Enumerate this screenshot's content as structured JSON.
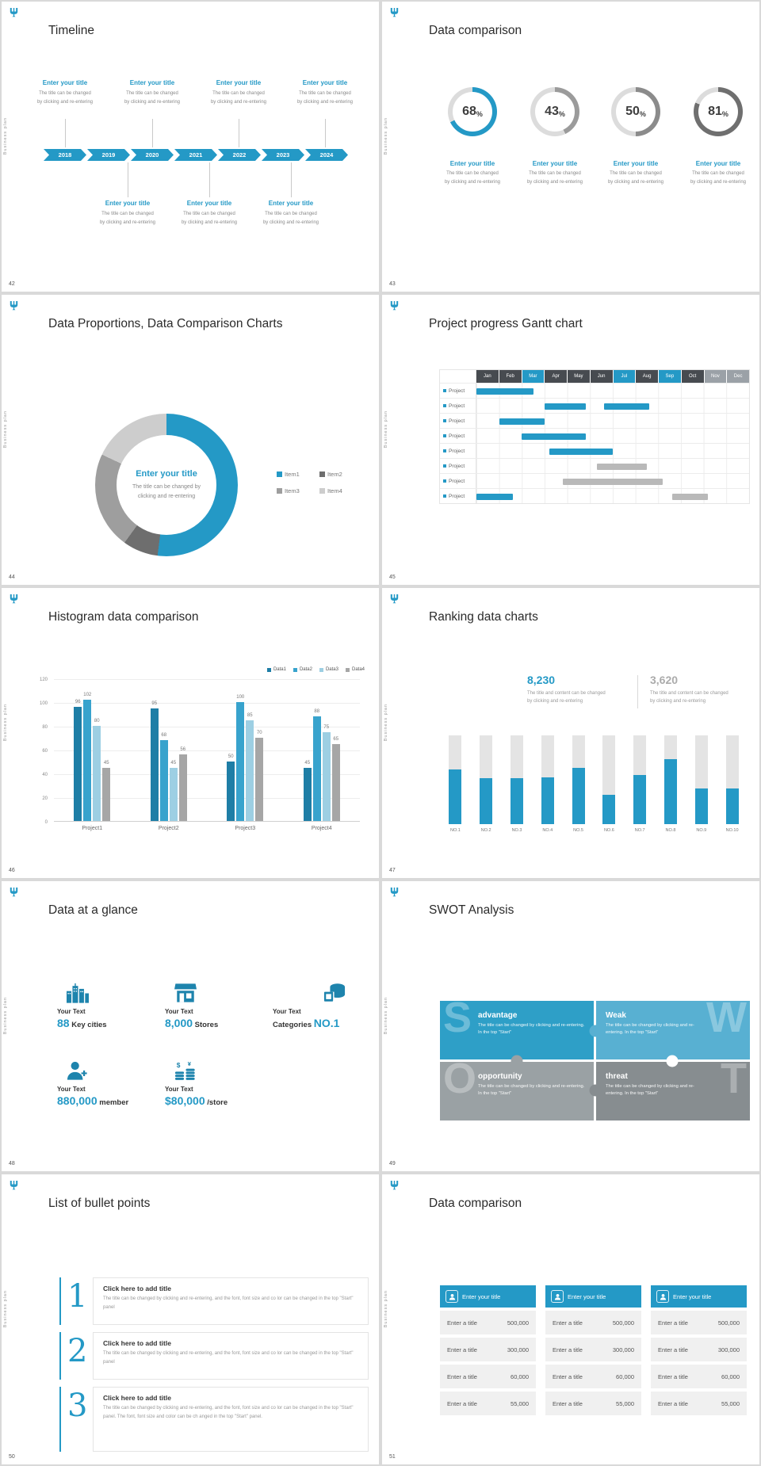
{
  "common": {
    "brand_vertical_text": "Business plan",
    "colors": {
      "primary": "#2499c6",
      "dark_text": "#2b2b2b",
      "gray_text": "#8a8a8a"
    }
  },
  "slides": [
    {
      "page": "42",
      "title": "Timeline",
      "years": [
        "2018",
        "2019",
        "2020",
        "2021",
        "2022",
        "2023",
        "2024"
      ],
      "top_entries": [
        {
          "title": "Enter your title",
          "desc1": "The title can be changed",
          "desc2": "by clicking and re-entering"
        },
        {
          "title": "Enter your title",
          "desc1": "The title can be changed",
          "desc2": "by clicking and re-entering"
        },
        {
          "title": "Enter your title",
          "desc1": "The title can be changed",
          "desc2": "by clicking and re-entering"
        },
        {
          "title": "Enter your title",
          "desc1": "The title can be changed",
          "desc2": "by clicking and re-entering"
        }
      ],
      "bottom_entries": [
        {
          "title": "Enter your title",
          "desc1": "The title can be changed",
          "desc2": "by clicking and re-entering"
        },
        {
          "title": "Enter your title",
          "desc1": "The title can be changed",
          "desc2": "by clicking and re-entering"
        },
        {
          "title": "Enter your title",
          "desc1": "The title can be changed",
          "desc2": "by clicking and re-entering"
        }
      ]
    },
    {
      "page": "43",
      "title": "Data comparison",
      "unit": "%",
      "rings": [
        {
          "value": 68,
          "color": "#2499c6",
          "title": "Enter your title",
          "desc1": "The title can be changed",
          "desc2": "by clicking and re-entering"
        },
        {
          "value": 43,
          "color": "#9b9b9b",
          "title": "Enter your title",
          "desc1": "The title can be changed",
          "desc2": "by clicking and re-entering"
        },
        {
          "value": 50,
          "color": "#8b8b8b",
          "title": "Enter your title",
          "desc1": "The title can be changed",
          "desc2": "by clicking and re-entering"
        },
        {
          "value": 81,
          "color": "#6f6f6f",
          "title": "Enter your title",
          "desc1": "The title can be changed",
          "desc2": "by clicking and re-entering"
        }
      ]
    },
    {
      "page": "44",
      "title": "Data Proportions, Data Comparison Charts",
      "center_title": "Enter your title",
      "center_desc1": "The title can be changed by",
      "center_desc2": "clicking and re-entering",
      "chart_data": {
        "type": "pie",
        "labels": [
          "Item1",
          "Item2",
          "Item3",
          "Item4"
        ],
        "values": [
          52,
          8,
          22,
          18
        ],
        "colors": [
          "#2499c6",
          "#6e6e6e",
          "#9e9e9e",
          "#cdcdcd"
        ]
      }
    },
    {
      "page": "45",
      "title": "Project progress Gantt chart",
      "chart_data": {
        "type": "gantt",
        "months": [
          "Jan",
          "Feb",
          "Mar",
          "Apr",
          "May",
          "Jun",
          "Jul",
          "Aug",
          "Sep",
          "Oct",
          "Nov",
          "Dec"
        ],
        "header_styles": [
          "dark",
          "dark",
          "blue",
          "dark",
          "dark",
          "dark",
          "blue",
          "dark",
          "blue",
          "dark",
          "muted",
          "muted"
        ],
        "row_label": "Project",
        "rows": 8,
        "bars": [
          {
            "row": 0,
            "start": 1,
            "len": 2.5,
            "color": "blue"
          },
          {
            "row": 1,
            "start": 4,
            "len": 1.8,
            "color": "blue"
          },
          {
            "row": 1,
            "start": 6.6,
            "len": 2,
            "color": "blue"
          },
          {
            "row": 2,
            "start": 2,
            "len": 2,
            "color": "blue"
          },
          {
            "row": 3,
            "start": 3,
            "len": 2.8,
            "color": "blue"
          },
          {
            "row": 4,
            "start": 4.2,
            "len": 2.8,
            "color": "blue"
          },
          {
            "row": 5,
            "start": 6.3,
            "len": 2.2,
            "color": "gray"
          },
          {
            "row": 6,
            "start": 4.8,
            "len": 4.4,
            "color": "gray"
          },
          {
            "row": 7,
            "start": 1,
            "len": 1.6,
            "color": "blue"
          },
          {
            "row": 7,
            "start": 9.6,
            "len": 1.6,
            "color": "gray"
          }
        ]
      }
    },
    {
      "page": "46",
      "title": "Histogram data comparison",
      "chart_data": {
        "type": "bar",
        "categories": [
          "Project1",
          "Project2",
          "Project3",
          "Project4"
        ],
        "series": [
          {
            "name": "Data1",
            "color": "#1e7ea6",
            "values": [
              96,
              95,
              50,
              45
            ]
          },
          {
            "name": "Data2",
            "color": "#38a3cd",
            "values": [
              102,
              68,
              100,
              88
            ]
          },
          {
            "name": "Data3",
            "color": "#9dcfe3",
            "values": [
              80,
              45,
              85,
              75
            ]
          },
          {
            "name": "Data4",
            "color": "#a6a6a6",
            "values": [
              45,
              56,
              70,
              65
            ]
          }
        ],
        "ylim": [
          0,
          120
        ],
        "ytick": 20
      }
    },
    {
      "page": "47",
      "title": "Ranking data charts",
      "stats": [
        {
          "value": "8,230",
          "desc1": "The title and content can be changed",
          "desc2": "by clicking and re-entering"
        },
        {
          "value": "3,620",
          "desc1": "The title and content can be changed",
          "desc2": "by clicking and re-entering"
        }
      ],
      "chart_data": {
        "type": "bar",
        "categories": [
          "NO.1",
          "NO.2",
          "NO.3",
          "NO.4",
          "NO.5",
          "NO.6",
          "NO.7",
          "NO.8",
          "NO.9",
          "NO.10"
        ],
        "values": [
          62,
          52,
          52,
          53,
          63,
          33,
          55,
          73,
          40,
          40
        ],
        "ylim": [
          0,
          100
        ]
      }
    },
    {
      "page": "48",
      "title": "Data at a glance",
      "items": [
        {
          "icon": "city-buildings-icon",
          "label": "Your Text",
          "big": "88",
          "rest": "Key cities",
          "big_first": true
        },
        {
          "icon": "store-icon",
          "label": "Your Text",
          "big": "8,000",
          "rest": "Stores",
          "big_first": true
        },
        {
          "icon": "category-boxes-icon",
          "label": "Your Text",
          "big": "NO.1",
          "rest": "Categories",
          "big_first": false
        },
        {
          "icon": "add-member-icon",
          "label": "Your Text",
          "big": "880,000",
          "rest": "member",
          "big_first": true
        },
        {
          "icon": "coins-icon",
          "label": "Your Text",
          "big": "$80,000",
          "rest": "/store",
          "big_first": true
        }
      ]
    },
    {
      "page": "49",
      "title": "SWOT Analysis",
      "tiles": [
        {
          "letter": "S",
          "heading": "advantage",
          "body": "The title can be changed by clicking and re-entering. In the top \"Start\"",
          "color": "#2e9fc7",
          "letter_side": "left"
        },
        {
          "letter": "W",
          "heading": "Weak",
          "body": "The title can be changed by clicking and re-entering. In the top \"Start\"",
          "color": "#58b0d2",
          "letter_side": "right"
        },
        {
          "letter": "O",
          "heading": "opportunity",
          "body": "The title can be changed by clicking and re-entering. In the top \"Start\"",
          "color": "#9aa1a4",
          "letter_side": "left"
        },
        {
          "letter": "T",
          "heading": "threat",
          "body": "The title can be changed by clicking and re-entering. In the top \"Start\"",
          "color": "#878d90",
          "letter_side": "right"
        }
      ]
    },
    {
      "page": "50",
      "title": "List of bullet points",
      "items": [
        {
          "num": "1",
          "heading": "Click here to add title",
          "body": "The title can be changed by clicking and re-entering, and the font, font size and co lor can be changed in the top \"Start\" panel"
        },
        {
          "num": "2",
          "heading": "Click here to add title",
          "body": "The title can be changed by clicking and re-entering, and the font, font size and co lor can be changed in the top \"Start\" panel"
        },
        {
          "num": "3",
          "heading": "Click here to add title",
          "body": "The title can be changed by clicking and re-entering, and the font, font size and co lor can be changed in the top \"Start\" panel. The font, font size and color can be ch anged in the top \"Start\" panel."
        }
      ]
    },
    {
      "page": "51",
      "title": "Data comparison",
      "columns": [
        {
          "header": "Enter your title",
          "rows": [
            {
              "label": "Enter a title",
              "value": "500,000"
            },
            {
              "label": "Enter a title",
              "value": "300,000"
            },
            {
              "label": "Enter a title",
              "value": "60,000"
            },
            {
              "label": "Enter a title",
              "value": "55,000"
            }
          ]
        },
        {
          "header": "Enter your title",
          "rows": [
            {
              "label": "Enter a title",
              "value": "500,000"
            },
            {
              "label": "Enter a title",
              "value": "300,000"
            },
            {
              "label": "Enter a title",
              "value": "60,000"
            },
            {
              "label": "Enter a title",
              "value": "55,000"
            }
          ]
        },
        {
          "header": "Enter your title",
          "rows": [
            {
              "label": "Enter a title",
              "value": "500,000"
            },
            {
              "label": "Enter a title",
              "value": "300,000"
            },
            {
              "label": "Enter a title",
              "value": "60,000"
            },
            {
              "label": "Enter a title",
              "value": "55,000"
            }
          ]
        }
      ]
    }
  ]
}
